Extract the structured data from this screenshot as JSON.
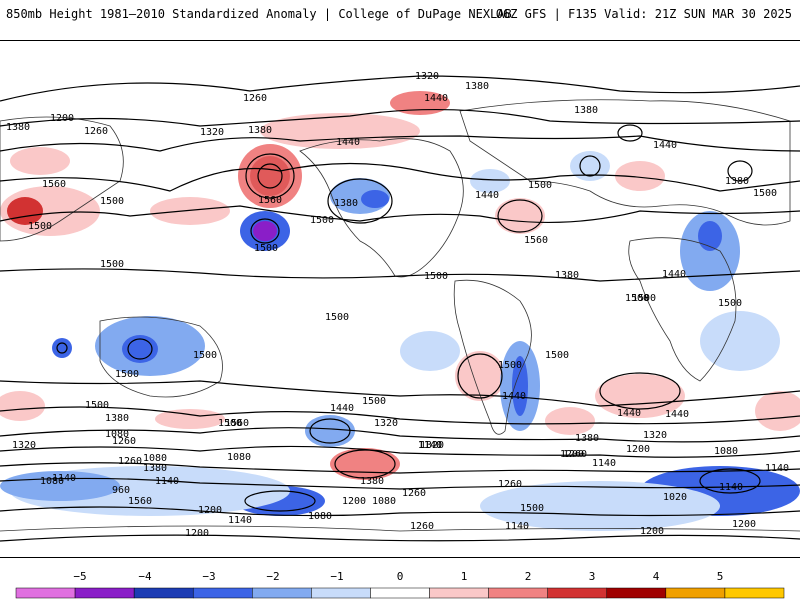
{
  "header": {
    "left_title": "850mb Height 1981–2010 Standardized Anomaly | College of DuPage NEXLAB",
    "right_title": "06Z GFS | F135 Valid: 21Z SUN MAR 30 2025"
  },
  "map": {
    "contour_labels": [
      {
        "id": "c1",
        "text": "1320"
      },
      {
        "id": "c2",
        "text": "1380"
      },
      {
        "id": "c3",
        "text": "1260"
      },
      {
        "id": "c4",
        "text": "1440"
      },
      {
        "id": "c5",
        "text": "1380"
      },
      {
        "id": "c6",
        "text": "1380"
      },
      {
        "id": "c7",
        "text": "1200"
      },
      {
        "id": "c8",
        "text": "1260"
      },
      {
        "id": "c9",
        "text": "1320"
      },
      {
        "id": "c10",
        "text": "1380"
      },
      {
        "id": "c11",
        "text": "1440"
      },
      {
        "id": "c12",
        "text": "1440"
      },
      {
        "id": "c13",
        "text": "1560"
      },
      {
        "id": "c14",
        "text": "1500"
      },
      {
        "id": "c15",
        "text": "1380"
      },
      {
        "id": "c16",
        "text": "1500"
      },
      {
        "id": "c17",
        "text": "1500"
      },
      {
        "id": "c18",
        "text": "1560"
      },
      {
        "id": "c19",
        "text": "1500"
      },
      {
        "id": "c20",
        "text": "1500"
      },
      {
        "id": "c21",
        "text": "1380"
      },
      {
        "id": "c22",
        "text": "1440"
      },
      {
        "id": "c23",
        "text": "1500"
      },
      {
        "id": "c24",
        "text": "1560"
      },
      {
        "id": "c25",
        "text": "1500"
      },
      {
        "id": "c26",
        "text": "1500"
      },
      {
        "id": "c27",
        "text": "1380"
      },
      {
        "id": "c28",
        "text": "1440"
      },
      {
        "id": "c29",
        "text": "1500"
      },
      {
        "id": "c30",
        "text": "1500"
      },
      {
        "id": "c31",
        "text": "1500"
      },
      {
        "id": "c32",
        "text": "1500"
      },
      {
        "id": "c33",
        "text": "1500"
      },
      {
        "id": "c34",
        "text": "1500"
      },
      {
        "id": "c35",
        "text": "1500"
      },
      {
        "id": "c36",
        "text": "1440"
      },
      {
        "id": "c37",
        "text": "1500"
      },
      {
        "id": "c38",
        "text": "1500"
      },
      {
        "id": "c39",
        "text": "1440"
      },
      {
        "id": "c40",
        "text": "1560"
      },
      {
        "id": "c41",
        "text": "1440"
      },
      {
        "id": "c42",
        "text": "1380"
      },
      {
        "id": "c43",
        "text": "1320"
      },
      {
        "id": "c44",
        "text": "1200"
      },
      {
        "id": "c45",
        "text": "1260"
      },
      {
        "id": "c46",
        "text": "1140"
      },
      {
        "id": "c47",
        "text": "1080"
      },
      {
        "id": "c48",
        "text": "1380"
      },
      {
        "id": "c49",
        "text": "1320"
      },
      {
        "id": "c50",
        "text": "1080"
      },
      {
        "id": "c51",
        "text": "1140"
      },
      {
        "id": "c52",
        "text": "1260"
      },
      {
        "id": "c53",
        "text": "1080"
      },
      {
        "id": "c54",
        "text": "960"
      },
      {
        "id": "c55",
        "text": "1080"
      },
      {
        "id": "c56",
        "text": "1140"
      },
      {
        "id": "c57",
        "text": "1200"
      },
      {
        "id": "c58",
        "text": "1140"
      },
      {
        "id": "c59",
        "text": "1080"
      },
      {
        "id": "c60",
        "text": "1200"
      },
      {
        "id": "c61",
        "text": "1260"
      },
      {
        "id": "c62",
        "text": "1320"
      },
      {
        "id": "c63",
        "text": "1380"
      },
      {
        "id": "c64",
        "text": "1560"
      },
      {
        "id": "c65",
        "text": "1500"
      },
      {
        "id": "c66",
        "text": "1440"
      },
      {
        "id": "c67",
        "text": "1380"
      },
      {
        "id": "c68",
        "text": "1320"
      },
      {
        "id": "c69",
        "text": "1260"
      },
      {
        "id": "c70",
        "text": "1200"
      },
      {
        "id": "c71",
        "text": "1140"
      },
      {
        "id": "c72",
        "text": "1080"
      },
      {
        "id": "c73",
        "text": "1020"
      },
      {
        "id": "c74",
        "text": "1140"
      },
      {
        "id": "c75",
        "text": "1200"
      },
      {
        "id": "c76",
        "text": "1260"
      },
      {
        "id": "c77",
        "text": "1200"
      },
      {
        "id": "c78",
        "text": "1200"
      },
      {
        "id": "c79",
        "text": "1140"
      },
      {
        "id": "c80",
        "text": "1260"
      },
      {
        "id": "c81",
        "text": "1140"
      },
      {
        "id": "c82",
        "text": "1140"
      },
      {
        "id": "c83",
        "text": "1080"
      },
      {
        "id": "c84",
        "text": "1500"
      },
      {
        "id": "c85",
        "text": "1500"
      }
    ]
  },
  "colorbar": {
    "labels": [
      "−5",
      "−4",
      "−3",
      "−2",
      "−1",
      "0",
      "1",
      "2",
      "3",
      "4",
      "5"
    ],
    "colors": [
      "#e070e0",
      "#8a1ec8",
      "#1c3cb4",
      "#3c64e6",
      "#82aaf0",
      "#c8dcfa",
      "#ffffff",
      "#fac8c8",
      "#f08282",
      "#d23232",
      "#a00000",
      "#f0a000",
      "#ffc800"
    ]
  }
}
